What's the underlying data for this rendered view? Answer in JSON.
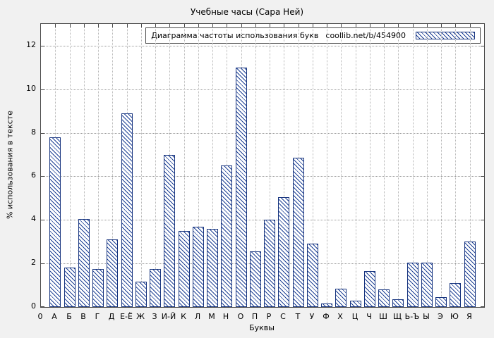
{
  "title": "Учебные часы (Сара Ней)",
  "legend": {
    "label": "Диаграмма частоты использования букв",
    "source": "coollib.net/b/454900"
  },
  "chart_data": {
    "type": "bar",
    "title": "Учебные часы (Сара Ней)",
    "legend_label": "Диаграмма частоты использования букв",
    "legend_source": "coollib.net/b/454900",
    "legend_position": "top-right",
    "xlabel": "Буквы",
    "ylabel": "% использования в тексте",
    "origin_label": "0",
    "categories": [
      "А",
      "Б",
      "В",
      "Г",
      "Д",
      "Е-Ё",
      "Ж",
      "З",
      "И-Й",
      "К",
      "Л",
      "М",
      "Н",
      "О",
      "П",
      "Р",
      "С",
      "Т",
      "У",
      "Ф",
      "Х",
      "Ц",
      "Ч",
      "Ш",
      "Щ",
      "Ь-Ъ",
      "Ы",
      "Э",
      "Ю",
      "Я"
    ],
    "values": [
      7.8,
      1.8,
      4.05,
      1.75,
      3.1,
      8.9,
      1.15,
      1.75,
      7.0,
      3.5,
      3.7,
      3.6,
      6.5,
      11.0,
      2.55,
      4.0,
      5.05,
      6.85,
      2.9,
      0.15,
      0.85,
      0.3,
      1.65,
      0.8,
      0.35,
      2.05,
      2.05,
      0.45,
      1.1,
      3.0
    ],
    "ylim": [
      0,
      13
    ],
    "yticks": [
      0,
      2,
      4,
      6,
      8,
      10,
      12
    ],
    "grid": true,
    "bar_fill": "#ffffff",
    "bar_hatch_color": "#1c3f94",
    "bar_border_color": "#17347e",
    "background_color": "#f1f1f1",
    "plot_background": "#ffffff"
  }
}
